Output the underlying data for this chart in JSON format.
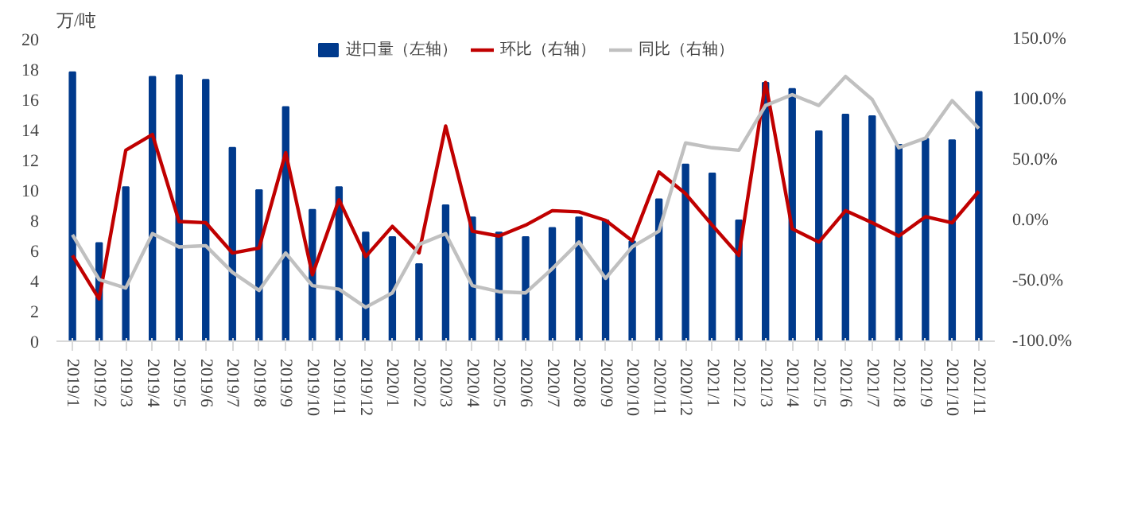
{
  "chart_data": {
    "type": "bar",
    "ylabel": "万/吨",
    "categories": [
      "2019/1",
      "2019/2",
      "2019/3",
      "2019/4",
      "2019/5",
      "2019/6",
      "2019/7",
      "2019/8",
      "2019/9",
      "2019/10",
      "2019/11",
      "2019/12",
      "2020/1",
      "2020/2",
      "2020/3",
      "2020/4",
      "2020/5",
      "2020/6",
      "2020/7",
      "2020/8",
      "2020/9",
      "2020/10",
      "2020/11",
      "2020/12",
      "2021/1",
      "2021/2",
      "2021/3",
      "2021/4",
      "2021/5",
      "2021/6",
      "2021/7",
      "2021/8",
      "2021/9",
      "2021/10",
      "2021/11"
    ],
    "series": [
      {
        "name": "进口量（左轴）",
        "color": "#003a8c",
        "values": [
          17.8,
          6.5,
          10.2,
          17.5,
          17.6,
          17.3,
          12.8,
          10.0,
          15.5,
          8.7,
          10.2,
          7.2,
          6.9,
          5.1,
          9.0,
          8.2,
          7.2,
          6.9,
          7.5,
          8.2,
          8.0,
          6.6,
          9.4,
          11.7,
          11.1,
          8.0,
          17.1,
          16.7,
          13.9,
          15.0,
          14.9,
          13.0,
          13.4,
          13.3,
          16.5
        ]
      },
      {
        "name": "环比（右轴）",
        "type": "line",
        "axis": "y2",
        "color": "#c00000",
        "values": [
          -29,
          -65,
          58,
          71,
          -1,
          -2,
          -27,
          -23,
          56,
          -45,
          17,
          -30,
          -5,
          -27,
          78,
          -9,
          -13,
          -4,
          8,
          7,
          0,
          -17,
          40,
          22,
          -4,
          -29,
          114,
          -7,
          -18,
          8,
          -2,
          -13,
          3,
          -2,
          24
        ]
      },
      {
        "name": "同比（右轴）",
        "type": "line",
        "axis": "y2",
        "color": "#c0c0c0",
        "values": [
          -12,
          -49,
          -56,
          -11,
          -22,
          -21,
          -43,
          -58,
          -27,
          -54,
          -57,
          -72,
          -60,
          -20,
          -11,
          -54,
          -59,
          -60,
          -40,
          -18,
          -48,
          -22,
          -9,
          64,
          60,
          58,
          95,
          104,
          95,
          119,
          100,
          60,
          68,
          99,
          76
        ]
      }
    ],
    "ylim": [
      0,
      20
    ],
    "yticks": [
      0,
      2,
      4,
      6,
      8,
      10,
      12,
      14,
      16,
      18,
      20
    ],
    "y2lim": [
      -100,
      150
    ],
    "y2ticks": [
      {
        "value": -100,
        "label": "-100.0%"
      },
      {
        "value": -50,
        "label": "-50.0%"
      },
      {
        "value": 0,
        "label": "0.0%"
      },
      {
        "value": 50,
        "label": "50.0%"
      },
      {
        "value": 100,
        "label": "100.0%"
      },
      {
        "value": 150,
        "label": "150.0%"
      }
    ],
    "grid": false,
    "legend": "top",
    "line_style": "solid",
    "marker": "none"
  }
}
